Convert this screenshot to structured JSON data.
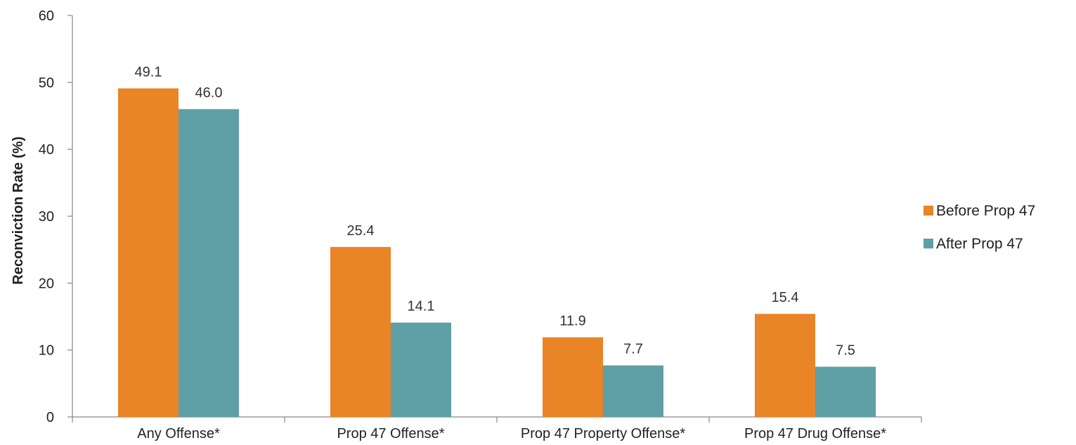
{
  "chart_data": {
    "type": "bar",
    "title": "",
    "xlabel": "",
    "ylabel": "Reconviction Rate (%)",
    "ylim": [
      0,
      60
    ],
    "yticks": [
      0,
      10,
      20,
      30,
      40,
      50,
      60
    ],
    "grid": false,
    "legend_position": "right",
    "categories": [
      "Any Offense*",
      "Prop 47 Offense*",
      "Prop 47 Property Offense*",
      "Prop 47 Drug Offense*"
    ],
    "series": [
      {
        "name": "Before Prop 47",
        "color": "#E98427",
        "values": [
          49.1,
          25.4,
          11.9,
          15.4
        ],
        "labels": [
          "49.1",
          "25.4",
          "11.9",
          "15.4"
        ]
      },
      {
        "name": "After Prop 47",
        "color": "#5F9FA6",
        "values": [
          46.0,
          14.1,
          7.7,
          7.5
        ],
        "labels": [
          "46.0",
          "14.1",
          "7.7",
          "7.5"
        ]
      }
    ]
  }
}
